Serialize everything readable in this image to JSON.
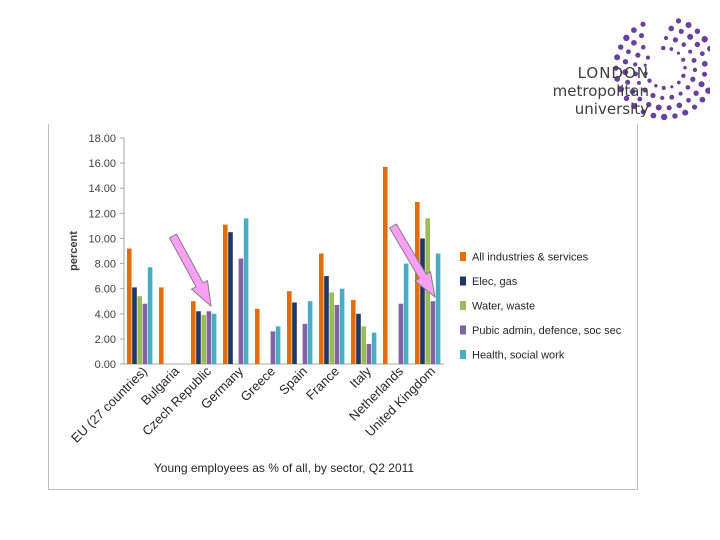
{
  "logo": {
    "line1": "LONDON",
    "line2": "metropolitan",
    "line3": "university",
    "color": "#6b3fa0"
  },
  "chart_data": {
    "type": "bar",
    "title": "Young employees as % of all, by sector, Q2 2011",
    "xlabel": "",
    "ylabel": "percent",
    "ylim": [
      0,
      18
    ],
    "yticks": [
      "0.00",
      "2.00",
      "4.00",
      "6.00",
      "8.00",
      "10.00",
      "12.00",
      "14.00",
      "16.00",
      "18.00"
    ],
    "categories": [
      "EU (27 countries)",
      "Bulgaria",
      "Czech Republic",
      "Germany",
      "Greece",
      "Spain",
      "France",
      "Italy",
      "Netherlands",
      "United Kingdom"
    ],
    "legend_position": "right",
    "series": [
      {
        "name": "All industries & services",
        "color": "#e46c0a",
        "values": [
          9.2,
          6.1,
          5.0,
          11.1,
          4.4,
          5.8,
          8.8,
          5.1,
          15.7,
          12.9
        ]
      },
      {
        "name": "Elec, gas",
        "color": "#1f3864",
        "values": [
          6.1,
          0,
          4.2,
          10.5,
          0,
          4.9,
          7.0,
          4.0,
          0,
          10.0
        ]
      },
      {
        "name": "Water, waste",
        "color": "#9bbb59",
        "values": [
          5.4,
          0,
          3.9,
          0,
          0,
          0,
          5.7,
          3.0,
          0,
          11.6
        ]
      },
      {
        "name": "Pubic admin, defence, soc sec",
        "color": "#8064a2",
        "values": [
          4.8,
          0,
          4.2,
          8.4,
          2.6,
          3.2,
          4.7,
          1.6,
          4.8,
          5.0
        ]
      },
      {
        "name": "Health, social work",
        "color": "#4bacc6",
        "values": [
          7.7,
          0,
          4.0,
          11.6,
          3.0,
          5.0,
          6.0,
          2.5,
          8.0,
          8.8
        ]
      }
    ],
    "annotations": [
      {
        "type": "arrow",
        "color": "#f99ff5",
        "points_to": "Czech Republic"
      },
      {
        "type": "arrow",
        "color": "#f99ff5",
        "points_to": "United Kingdom"
      }
    ]
  }
}
